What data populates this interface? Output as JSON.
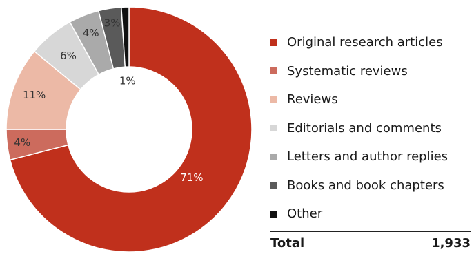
{
  "chart_data": {
    "type": "pie",
    "donut": true,
    "categories": [
      "Original research articles",
      "Systematic reviews",
      "Reviews",
      "Editorials and comments",
      "Letters and author replies",
      "Books and book chapters",
      "Other"
    ],
    "values": [
      71,
      4,
      11,
      6,
      4,
      3,
      1
    ],
    "value_labels": [
      "71%",
      "4%",
      "11%",
      "6%",
      "4%",
      "3%",
      "1%"
    ],
    "colors": [
      "#c0301c",
      "#cc6b5d",
      "#ecb9a6",
      "#d7d7d7",
      "#aaaaaa",
      "#5a5a5a",
      "#111111"
    ],
    "legend_position": "right",
    "total": {
      "label": "Total",
      "value": "1,933"
    }
  }
}
